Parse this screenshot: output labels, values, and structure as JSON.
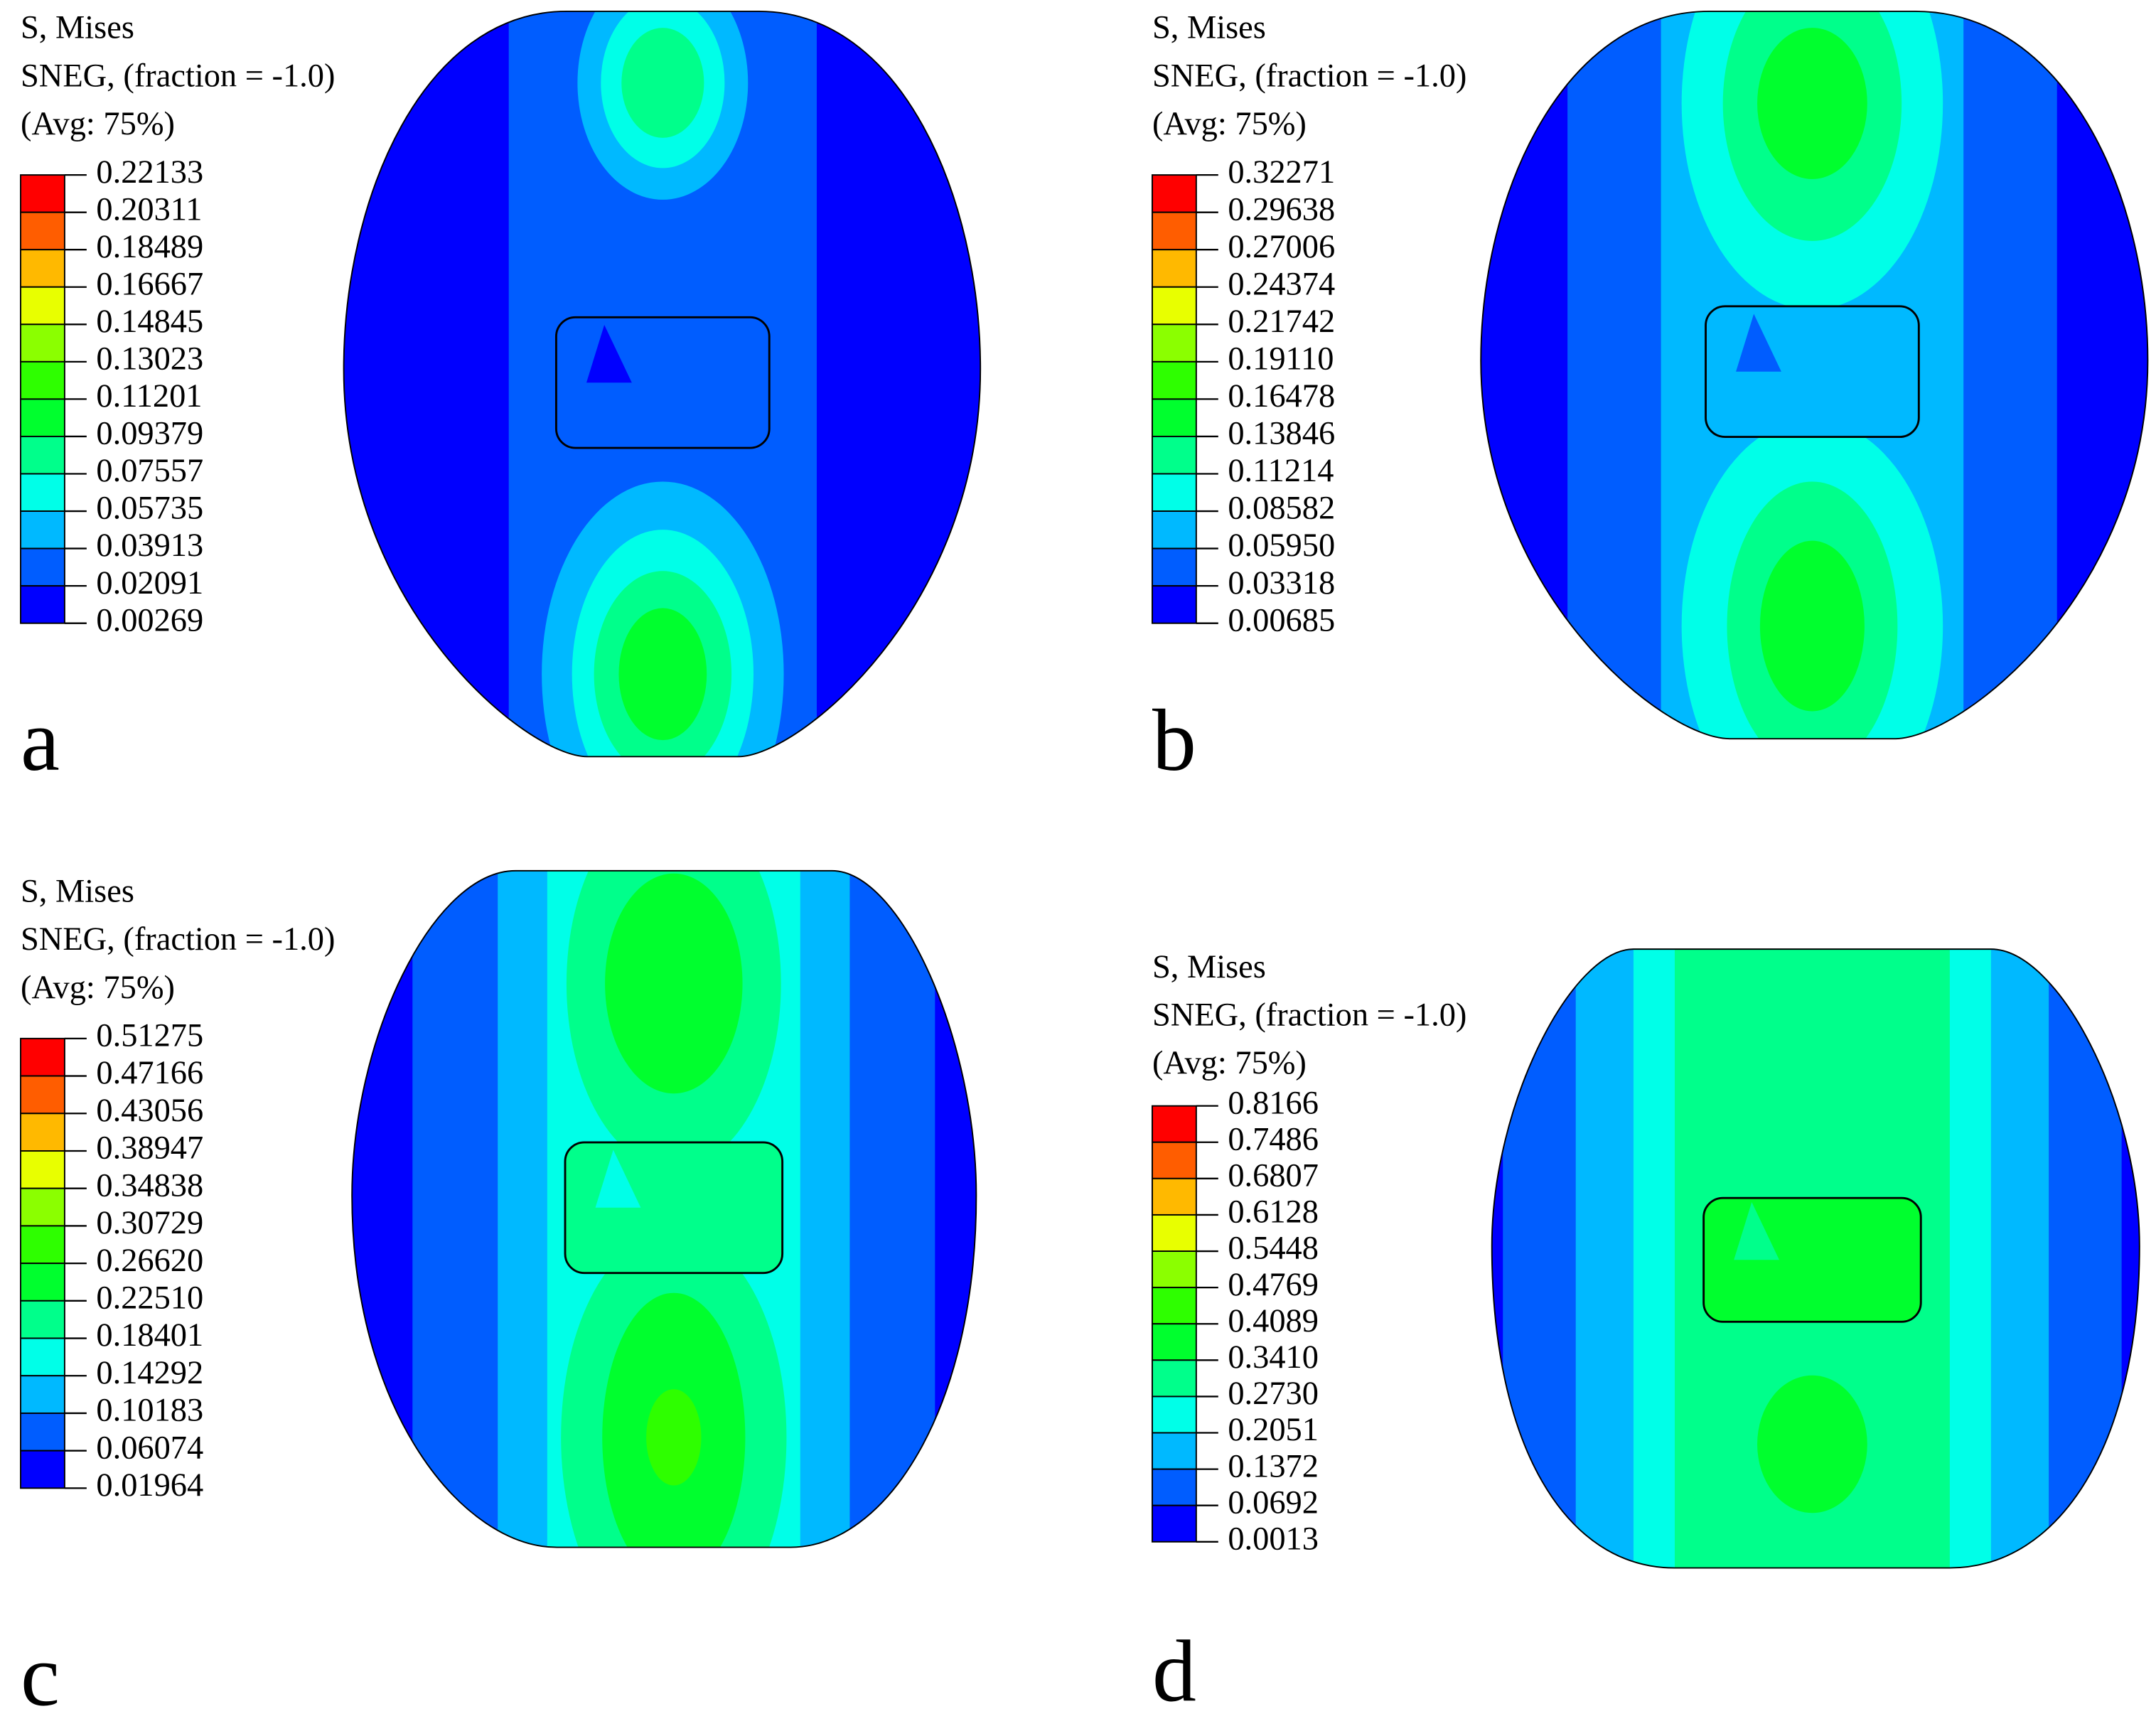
{
  "panels": [
    {
      "label": "a",
      "legend": {
        "title": [
          "S, Mises",
          "SNEG, (fraction = -1.0)",
          "(Avg: 75%)"
        ],
        "values": [
          "0.22133",
          "0.20311",
          "0.18489",
          "0.16667",
          "0.14845",
          "0.13023",
          "0.11201",
          "0.09379",
          "0.07557",
          "0.05735",
          "0.03913",
          "0.02091",
          "0.00269"
        ]
      }
    },
    {
      "label": "b",
      "legend": {
        "title": [
          "S, Mises",
          "SNEG, (fraction = -1.0)",
          "(Avg: 75%)"
        ],
        "values": [
          "0.32271",
          "0.29638",
          "0.27006",
          "0.24374",
          "0.21742",
          "0.19110",
          "0.16478",
          "0.13846",
          "0.11214",
          "0.08582",
          "0.05950",
          "0.03318",
          "0.00685"
        ]
      }
    },
    {
      "label": "c",
      "legend": {
        "title": [
          "S, Mises",
          "SNEG, (fraction = -1.0)",
          "(Avg: 75%)"
        ],
        "values": [
          "0.51275",
          "0.47166",
          "0.43056",
          "0.38947",
          "0.34838",
          "0.30729",
          "0.26620",
          "0.22510",
          "0.18401",
          "0.14292",
          "0.10183",
          "0.06074",
          "0.01964"
        ]
      }
    },
    {
      "label": "d",
      "legend": {
        "title": [
          "S, Mises",
          "SNEG, (fraction = -1.0)",
          "(Avg: 75%)"
        ],
        "values": [
          "0.8166",
          "0.7486",
          "0.6807",
          "0.6128",
          "0.5448",
          "0.4769",
          "0.4089",
          "0.3410",
          "0.2730",
          "0.2051",
          "0.1372",
          "0.0692",
          "0.0013"
        ]
      }
    }
  ]
}
